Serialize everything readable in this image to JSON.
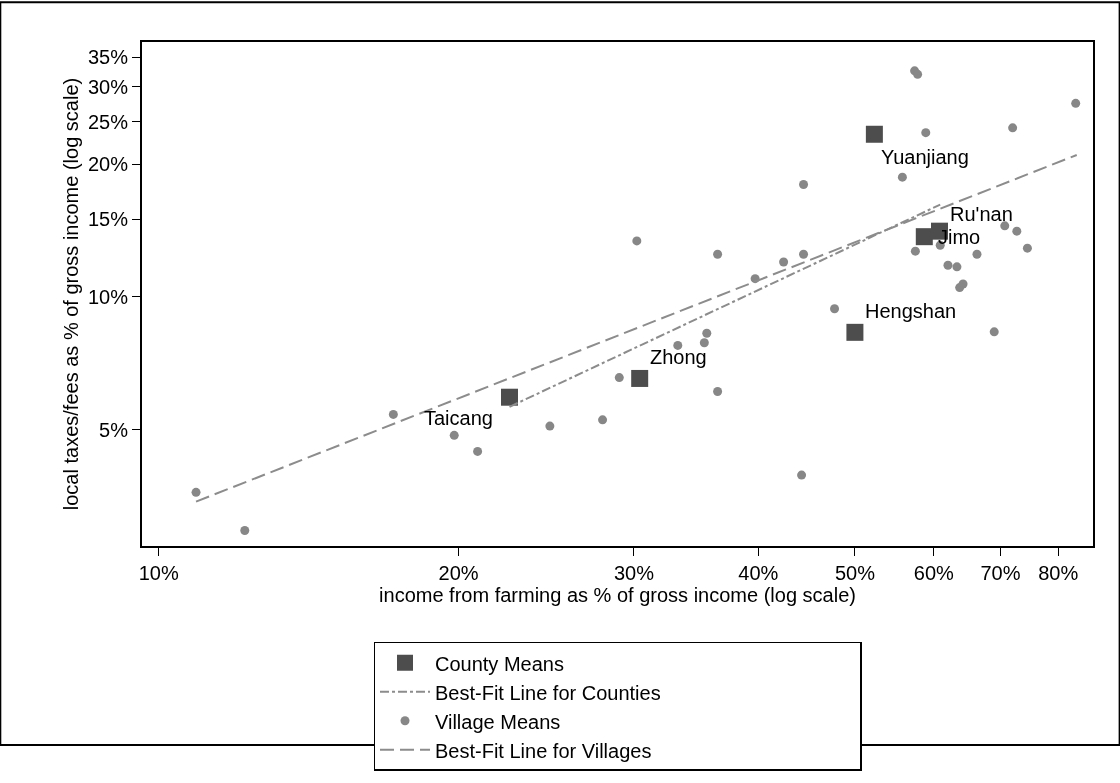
{
  "chart_data": {
    "type": "scatter",
    "xlabel": "income from farming as % of gross income (log scale)",
    "ylabel": "local taxes/fees as % of gross income (log scale)",
    "log": "xy",
    "xlim": [
      9.62,
      86.7
    ],
    "ylim": [
      2.72,
      37.9
    ],
    "xticks": [
      {
        "value": 10,
        "label": "10%"
      },
      {
        "value": 20,
        "label": "20%"
      },
      {
        "value": 30,
        "label": "30%"
      },
      {
        "value": 40,
        "label": "40%"
      },
      {
        "value": 50,
        "label": "50%"
      },
      {
        "value": 60,
        "label": "60%"
      },
      {
        "value": 70,
        "label": "70%"
      },
      {
        "value": 80,
        "label": "80%"
      }
    ],
    "yticks": [
      {
        "value": 5,
        "label": "5%"
      },
      {
        "value": 10,
        "label": "10%"
      },
      {
        "value": 15,
        "label": "15%"
      },
      {
        "value": 20,
        "label": "20%"
      },
      {
        "value": 25,
        "label": "25%"
      },
      {
        "value": 30,
        "label": "30%"
      },
      {
        "value": 35,
        "label": "35%"
      }
    ],
    "legend": "bottom",
    "series": [
      {
        "name": "County Means",
        "marker": "square",
        "color": "#4d4d4d",
        "x": [
          22.5,
          30.4,
          50.0,
          52.3,
          58.7,
          60.8
        ],
        "values": [
          5.92,
          6.53,
          8.31,
          23.4,
          13.7,
          14.1
        ]
      },
      {
        "name": "Best-Fit Line for Counties",
        "type": "line",
        "marker": "none",
        "line_style": "dashdot",
        "color": "#8c8c8c",
        "x": [
          22.5,
          60.9
        ],
        "values": [
          5.63,
          16.2
        ]
      },
      {
        "name": "Village Means",
        "marker": "circle",
        "color": "#878787",
        "x": [
          57.4,
          57.8,
          83.3,
          58.9,
          72.0,
          55.8,
          44.4,
          30.2,
          36.4,
          42.4,
          44.4,
          39.7,
          57.5,
          60.9,
          66.3,
          70.7,
          72.7,
          74.5,
          62.0,
          63.3,
          64.2,
          63.7,
          47.7,
          69.0,
          35.5,
          35.3,
          33.2,
          29.0,
          36.4,
          27.9,
          44.2,
          17.2,
          19.8,
          20.9,
          24.7,
          10.9,
          12.2
        ],
        "values": [
          32.6,
          32.0,
          27.5,
          23.6,
          24.2,
          18.7,
          18.0,
          13.4,
          12.5,
          12.0,
          12.5,
          11.0,
          12.7,
          13.1,
          12.5,
          14.5,
          14.1,
          12.9,
          11.8,
          11.7,
          10.7,
          10.5,
          9.4,
          8.33,
          8.27,
          7.87,
          7.76,
          6.56,
          6.1,
          5.26,
          3.94,
          5.41,
          4.85,
          4.46,
          5.09,
          3.6,
          2.95
        ]
      },
      {
        "name": "Best-Fit Line for Villages",
        "type": "line",
        "marker": "none",
        "line_style": "dashed",
        "color": "#8c8c8c",
        "x": [
          10.9,
          83.5
        ],
        "values": [
          3.43,
          21.0
        ]
      }
    ],
    "annotations": [
      {
        "text": "Taicang",
        "x": 22.5,
        "y": 5.92
      },
      {
        "text": "Zhong",
        "x": 30.4,
        "y": 6.53
      },
      {
        "text": "Hengshan",
        "x": 50.0,
        "y": 8.31
      },
      {
        "text": "Yuanjiang",
        "x": 52.3,
        "y": 23.4
      },
      {
        "text": "Jimo",
        "x": 58.7,
        "y": 13.7
      },
      {
        "text": "Ru'nan",
        "x": 60.8,
        "y": 14.1
      }
    ]
  }
}
